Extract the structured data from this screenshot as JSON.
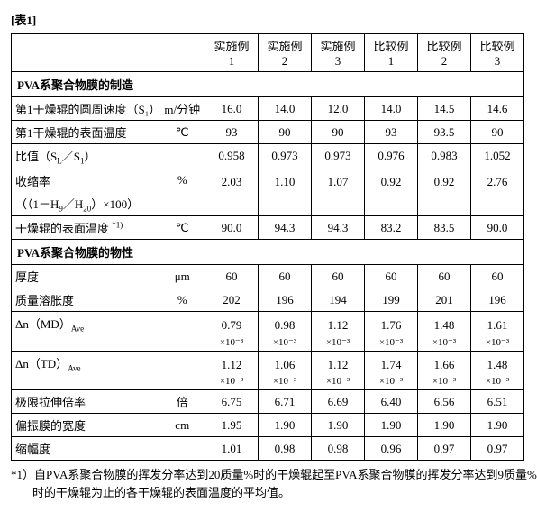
{
  "title": "[表1]",
  "columns": {
    "h1": "实施例",
    "n1": "1",
    "h2": "实施例",
    "n2": "2",
    "h3": "实施例",
    "n3": "3",
    "h4": "比较例",
    "n4": "1",
    "h5": "比较例",
    "n5": "2",
    "h6": "比较例",
    "n6": "3"
  },
  "section1": "PVA系聚合物膜的制造",
  "r1": {
    "label": "第1干燥辊的圆周速度（S₁）",
    "unit": "m/分钟",
    "v": [
      "16.0",
      "14.0",
      "12.0",
      "14.0",
      "14.5",
      "14.6"
    ]
  },
  "r2": {
    "label": "第1干燥辊的表面温度",
    "unit": "℃",
    "v": [
      "93",
      "90",
      "90",
      "93",
      "93.5",
      "90"
    ]
  },
  "r3": {
    "label": "比值（S<span class=\"sub\">L</span>／S<span class=\"sub\">1</span>）",
    "unit": "",
    "v": [
      "0.958",
      "0.973",
      "0.973",
      "0.976",
      "0.983",
      "1.052"
    ]
  },
  "r4": {
    "label1": "收缩率",
    "label2": "（（1－H<span class=\"sub\">9</span>／H<span class=\"sub\">20</span>）×100）",
    "unit": "%",
    "v": [
      "2.03",
      "1.10",
      "1.07",
      "0.92",
      "0.92",
      "2.76"
    ]
  },
  "r5": {
    "label": "干燥辊的表面温度 <span class=\"sup\">*1)</span>",
    "unit": "℃",
    "v": [
      "90.0",
      "94.3",
      "94.3",
      "83.2",
      "83.5",
      "90.0"
    ]
  },
  "section2": "PVA系聚合物膜的物性",
  "r6": {
    "label": "厚度",
    "unit": "μm",
    "v": [
      "60",
      "60",
      "60",
      "60",
      "60",
      "60"
    ]
  },
  "r7": {
    "label": "质量溶胀度",
    "unit": "%",
    "v": [
      "202",
      "196",
      "194",
      "199",
      "201",
      "196"
    ]
  },
  "r8": {
    "label": "Δn（MD）<span class=\"sub\">Ave</span>",
    "unit": "",
    "v1": [
      "0.79",
      "0.98",
      "1.12",
      "1.76",
      "1.48",
      "1.61"
    ],
    "exp": "×10⁻³"
  },
  "r9": {
    "label": "Δn（TD）<span class=\"sub\">Ave</span>",
    "unit": "",
    "v1": [
      "1.12",
      "1.06",
      "1.12",
      "1.74",
      "1.66",
      "1.48"
    ],
    "exp": "×10⁻³"
  },
  "r10": {
    "label": "极限拉伸倍率",
    "unit": "倍",
    "v": [
      "6.75",
      "6.71",
      "6.69",
      "6.40",
      "6.56",
      "6.51"
    ]
  },
  "r11": {
    "label": "偏振膜的宽度",
    "unit": "cm",
    "v": [
      "1.95",
      "1.90",
      "1.90",
      "1.90",
      "1.90",
      "1.90"
    ]
  },
  "r12": {
    "label": "缩幅度",
    "unit": "",
    "v": [
      "1.01",
      "0.98",
      "0.98",
      "0.96",
      "0.97",
      "0.97"
    ]
  },
  "footnote": "*1）自PVA系聚合物膜的挥发分率达到20质量%时的干燥辊起至PVA系聚合物膜的挥发分率达到9质量%时的干燥辊为止的各干燥辊的表面温度的平均值。"
}
